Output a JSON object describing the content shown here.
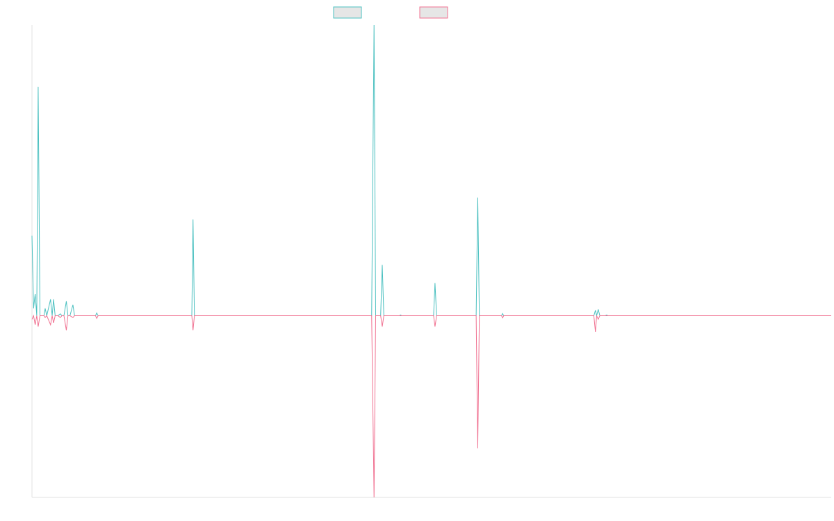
{
  "chart_data": {
    "type": "line",
    "title": "",
    "xlabel": "",
    "ylabel": "",
    "grid": false,
    "legend_placement": "top-center",
    "ylim": [
      -100,
      160
    ],
    "xlim": [
      0,
      400
    ],
    "series": [
      {
        "color": "#4bc0c0",
        "points": [
          [
            0,
            44
          ],
          [
            0.8,
            4
          ],
          [
            1.6,
            12
          ],
          [
            2.4,
            0
          ],
          [
            3.1,
            126
          ],
          [
            4,
            0
          ],
          [
            5,
            0
          ],
          [
            6,
            0
          ],
          [
            6.6,
            4
          ],
          [
            7.4,
            0
          ],
          [
            9.3,
            9
          ],
          [
            10.1,
            0
          ],
          [
            10.8,
            9
          ],
          [
            11.6,
            0
          ],
          [
            13,
            0
          ],
          [
            14.2,
            1
          ],
          [
            15,
            0
          ],
          [
            16,
            0
          ],
          [
            17.2,
            8
          ],
          [
            18,
            0
          ],
          [
            19,
            0
          ],
          [
            20.5,
            6
          ],
          [
            21.3,
            0
          ],
          [
            22.5,
            0
          ],
          [
            31.8,
            0
          ],
          [
            32.4,
            1.5
          ],
          [
            33.1,
            0
          ],
          [
            80,
            0
          ],
          [
            80.6,
            53
          ],
          [
            81.3,
            0
          ],
          [
            170,
            0
          ],
          [
            171.2,
            160
          ],
          [
            172,
            0
          ],
          [
            174.5,
            0
          ],
          [
            175.3,
            28
          ],
          [
            176.1,
            0
          ],
          [
            184,
            0
          ],
          [
            184.4,
            0.4
          ],
          [
            185,
            0
          ],
          [
            201,
            0
          ],
          [
            201.7,
            18
          ],
          [
            202.5,
            0
          ],
          [
            222.3,
            0
          ],
          [
            223.1,
            65
          ],
          [
            223.9,
            0
          ],
          [
            235,
            0
          ],
          [
            235.5,
            1.2
          ],
          [
            236.1,
            0
          ],
          [
            281.2,
            0
          ],
          [
            282,
            3
          ],
          [
            282.6,
            0
          ],
          [
            283.4,
            3.5
          ],
          [
            284.2,
            0
          ],
          [
            287,
            0
          ],
          [
            287.6,
            0.4
          ],
          [
            288.2,
            0
          ],
          [
            400,
            0
          ]
        ]
      },
      {
        "color": "#f07090",
        "points": [
          [
            0,
            -2
          ],
          [
            0.8,
            0
          ],
          [
            1.6,
            -5
          ],
          [
            2.4,
            0
          ],
          [
            3.1,
            -6
          ],
          [
            4,
            0
          ],
          [
            5,
            0
          ],
          [
            6,
            0
          ],
          [
            6.6,
            -1
          ],
          [
            7.4,
            0
          ],
          [
            9.3,
            -5
          ],
          [
            10.1,
            0
          ],
          [
            10.8,
            -4
          ],
          [
            11.6,
            0
          ],
          [
            13,
            0
          ],
          [
            14.2,
            -1
          ],
          [
            15,
            0
          ],
          [
            16,
            0
          ],
          [
            17.2,
            -8
          ],
          [
            18,
            0
          ],
          [
            19,
            0
          ],
          [
            20.5,
            -1
          ],
          [
            21.3,
            0
          ],
          [
            22.5,
            0
          ],
          [
            31.8,
            0
          ],
          [
            32.4,
            -1.5
          ],
          [
            33.1,
            0
          ],
          [
            80,
            0
          ],
          [
            80.6,
            -8
          ],
          [
            81.3,
            0
          ],
          [
            170,
            0
          ],
          [
            171.2,
            -100
          ],
          [
            172,
            0
          ],
          [
            174.5,
            0
          ],
          [
            175.3,
            -6
          ],
          [
            176.1,
            0
          ],
          [
            184,
            0
          ],
          [
            184.4,
            0
          ],
          [
            185,
            0
          ],
          [
            201,
            0
          ],
          [
            201.7,
            -6
          ],
          [
            202.5,
            0
          ],
          [
            222.3,
            0
          ],
          [
            223.1,
            -73
          ],
          [
            223.9,
            0
          ],
          [
            235,
            0
          ],
          [
            235.5,
            -1.2
          ],
          [
            236.1,
            0
          ],
          [
            281.2,
            0
          ],
          [
            282,
            -9
          ],
          [
            282.6,
            0
          ],
          [
            283.4,
            -2
          ],
          [
            284.2,
            0
          ],
          [
            287,
            0
          ],
          [
            287.6,
            0
          ],
          [
            288.2,
            0
          ],
          [
            400,
            0
          ]
        ]
      }
    ]
  }
}
